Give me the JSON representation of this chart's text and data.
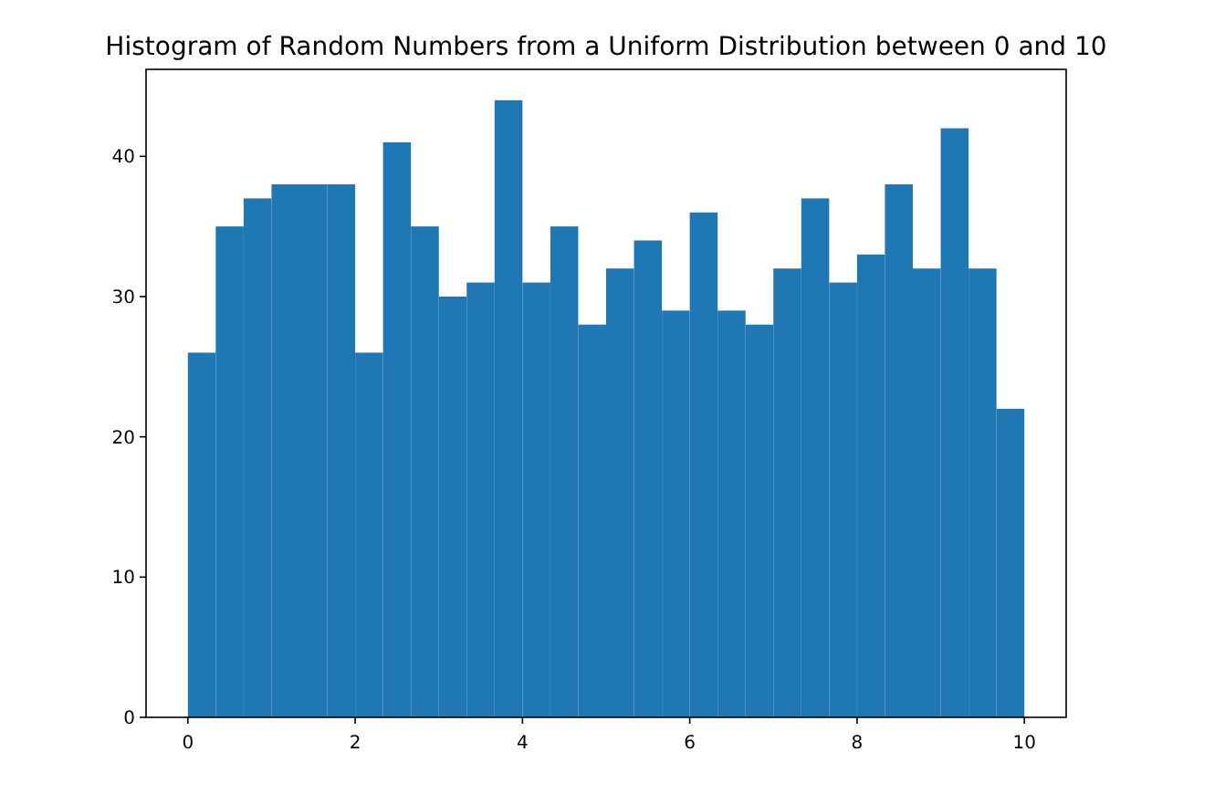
{
  "chart_data": {
    "type": "histogram",
    "title": "Histogram of Random Numbers from a Uniform Distribution between 0 and 10",
    "bins": [
      0,
      0.3333,
      0.6667,
      1,
      1.3333,
      1.6667,
      2,
      2.3333,
      2.6667,
      3,
      3.3333,
      3.6667,
      4,
      4.3333,
      4.6667,
      5,
      5.3333,
      5.6667,
      6,
      6.3333,
      6.6667,
      7,
      7.3333,
      7.6667,
      8,
      8.3333,
      8.6667,
      9,
      9.3333,
      9.6667,
      10
    ],
    "values": [
      26,
      35,
      37,
      38,
      38,
      38,
      26,
      41,
      35,
      30,
      31,
      44,
      31,
      35,
      28,
      32,
      34,
      29,
      36,
      29,
      28,
      32,
      37,
      31,
      33,
      38,
      32,
      42,
      32,
      22
    ],
    "color": "#1f77b4",
    "xlim": [
      -0.5,
      10.5
    ],
    "xticks": [
      0,
      2,
      4,
      6,
      8,
      10
    ],
    "ylim": [
      0,
      46.2
    ],
    "yticks": [
      0,
      10,
      20,
      30,
      40
    ],
    "grid": false
  }
}
